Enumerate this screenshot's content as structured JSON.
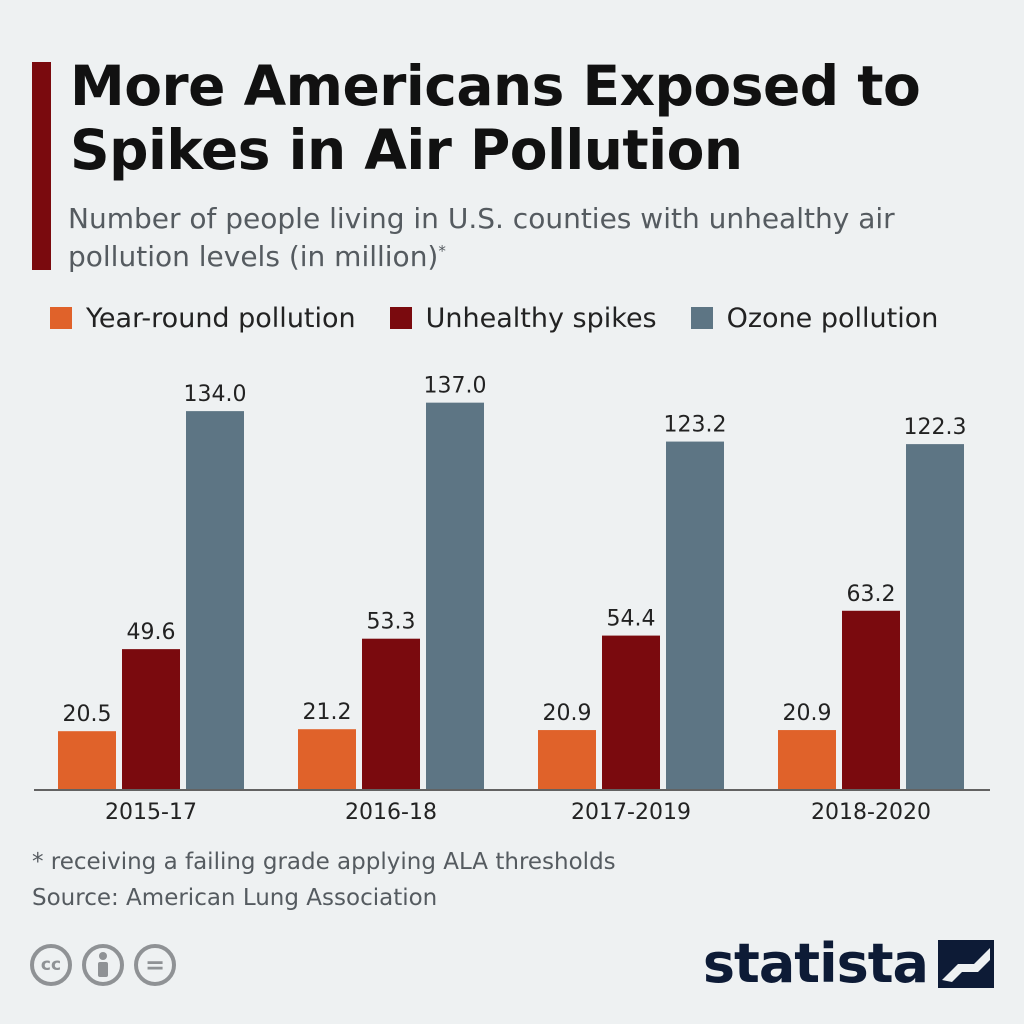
{
  "header": {
    "title": "More Americans Exposed to Spikes in Air Pollution",
    "subtitle": "Number of people living in U.S. counties with unhealthy air pollution levels (in million)",
    "subtitle_marker": "*"
  },
  "legend": [
    {
      "label": "Year-round pollution",
      "color": "#e0622a"
    },
    {
      "label": "Unhealthy spikes",
      "color": "#7a0a0e"
    },
    {
      "label": "Ozone pollution",
      "color": "#5d7584"
    }
  ],
  "chart_data": {
    "type": "bar",
    "categories": [
      "2015-17",
      "2016-18",
      "2017-2019",
      "2018-2020"
    ],
    "series": [
      {
        "name": "Year-round pollution",
        "color": "#e0622a",
        "values": [
          20.5,
          21.2,
          20.9,
          20.9
        ],
        "labels": [
          "20.5",
          "21.2",
          "20.9",
          "20.9"
        ]
      },
      {
        "name": "Unhealthy spikes",
        "color": "#7a0a0e",
        "values": [
          49.6,
          53.3,
          54.4,
          63.2
        ],
        "labels": [
          "49.6",
          "53.3",
          "54.4",
          "63.2"
        ]
      },
      {
        "name": "Ozone pollution",
        "color": "#5d7584",
        "values": [
          134.0,
          137.0,
          123.2,
          122.3
        ],
        "labels": [
          "134.0",
          "137.0",
          "123.2",
          "122.3"
        ]
      }
    ],
    "ylim": [
      0,
      140
    ],
    "grid": false
  },
  "footer": {
    "note": "* receiving a failing grade applying ALA thresholds",
    "source": "Source: American Lung Association",
    "cc_labels": [
      "cc",
      "="
    ],
    "brand": "statista"
  }
}
